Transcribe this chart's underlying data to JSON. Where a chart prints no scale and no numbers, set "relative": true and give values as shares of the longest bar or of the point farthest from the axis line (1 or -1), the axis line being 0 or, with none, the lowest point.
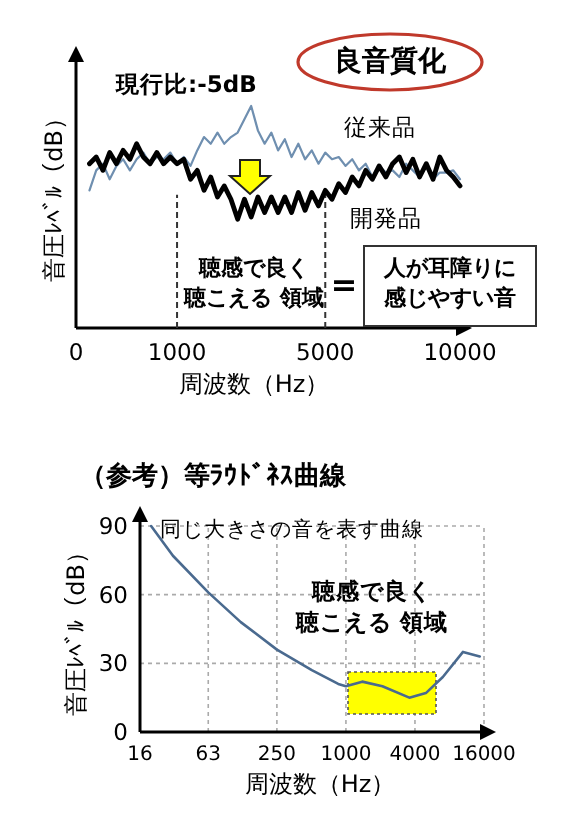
{
  "chart_data": [
    {
      "type": "line",
      "relative": true,
      "xlabel": "周波数（Hz）",
      "ylabel": "音圧ﾚﾍﾞﾙ（dB）",
      "categories": [
        "0",
        null,
        null,
        null,
        null,
        null,
        null,
        null,
        null,
        null,
        null,
        null,
        null,
        null,
        null,
        "1000",
        null,
        null,
        null,
        null,
        null,
        null,
        null,
        null,
        null,
        null,
        null,
        null,
        null,
        null,
        null,
        null,
        null,
        null,
        null,
        null,
        null,
        "5000",
        null,
        null,
        null,
        null,
        null,
        null,
        null,
        null,
        null,
        null,
        null,
        null,
        null,
        null,
        null,
        null,
        null,
        null,
        null,
        "10000"
      ],
      "series": [
        {
          "name": "従来品",
          "color": "#6f8fb0",
          "values": [
            null,
            null,
            0.62,
            0.71,
            0.74,
            0.67,
            0.73,
            0.76,
            0.71,
            0.76,
            0.79,
            0.74,
            0.77,
            0.76,
            0.79,
            0.74,
            0.77,
            0.73,
            0.8,
            0.86,
            0.83,
            0.88,
            0.83,
            0.86,
            0.88,
            0.94,
            1.0,
            0.89,
            0.83,
            0.88,
            0.8,
            0.85,
            0.77,
            0.83,
            0.76,
            0.8,
            0.74,
            0.79,
            0.76,
            0.77,
            0.73,
            0.76,
            0.71,
            0.74,
            0.68,
            0.73,
            0.7,
            0.71,
            0.68,
            0.74,
            0.71,
            0.68,
            0.73,
            0.67,
            0.7,
            0.7,
            0.71,
            0.67
          ]
        },
        {
          "name": "開発品",
          "color": "#000000",
          "values": [
            null,
            null,
            0.74,
            0.77,
            0.71,
            0.79,
            0.74,
            0.8,
            0.76,
            0.83,
            0.77,
            0.74,
            0.79,
            0.74,
            0.77,
            0.74,
            0.76,
            0.67,
            0.71,
            0.62,
            0.68,
            0.59,
            0.64,
            0.58,
            0.49,
            0.58,
            0.5,
            0.59,
            0.52,
            0.59,
            0.52,
            0.59,
            0.52,
            0.61,
            0.53,
            0.61,
            0.55,
            0.62,
            0.58,
            0.65,
            0.61,
            0.68,
            0.64,
            0.71,
            0.67,
            0.73,
            0.68,
            0.74,
            0.77,
            0.7,
            0.76,
            0.68,
            0.74,
            0.67,
            0.77,
            0.71,
            0.68,
            0.64
          ]
        }
      ],
      "ref_lines": [
        {
          "axis": "x",
          "value": "1000",
          "line_style": "dashed"
        },
        {
          "axis": "x",
          "value": "5000",
          "line_style": "dashed"
        }
      ],
      "annotations": [
        "現行比:-5dB",
        "良音質化",
        "聴感で良く聴こえる 領域",
        "＝",
        "人が耳障りに感じやすい音"
      ]
    },
    {
      "type": "line",
      "title": "（参考）等ﾗｳﾄﾞﾈｽ曲線",
      "xlabel": "周波数（Hz）",
      "ylabel": "音圧ﾚﾍﾞﾙ（dB）",
      "log": "x",
      "x": [
        20,
        31,
        63,
        121,
        250,
        504,
        857,
        1000,
        1387,
        2080,
        3570,
        4980,
        7000,
        10500,
        14700
      ],
      "series": [
        {
          "color": "#4a6a8f",
          "values": [
            90,
            77,
            61,
            48,
            36,
            27,
            21,
            20,
            22,
            20,
            15,
            17,
            24,
            35,
            33
          ]
        }
      ],
      "xlim": [
        16,
        16000
      ],
      "xticks": [
        16,
        63,
        250,
        1000,
        4000,
        16000
      ],
      "ylim": [
        0,
        90
      ],
      "yticks": [
        0,
        30,
        60,
        90
      ],
      "grid": true,
      "annotations": [
        "同じ大きさの音を表す曲線",
        "聴感で良く聴こえる 領域"
      ]
    }
  ]
}
